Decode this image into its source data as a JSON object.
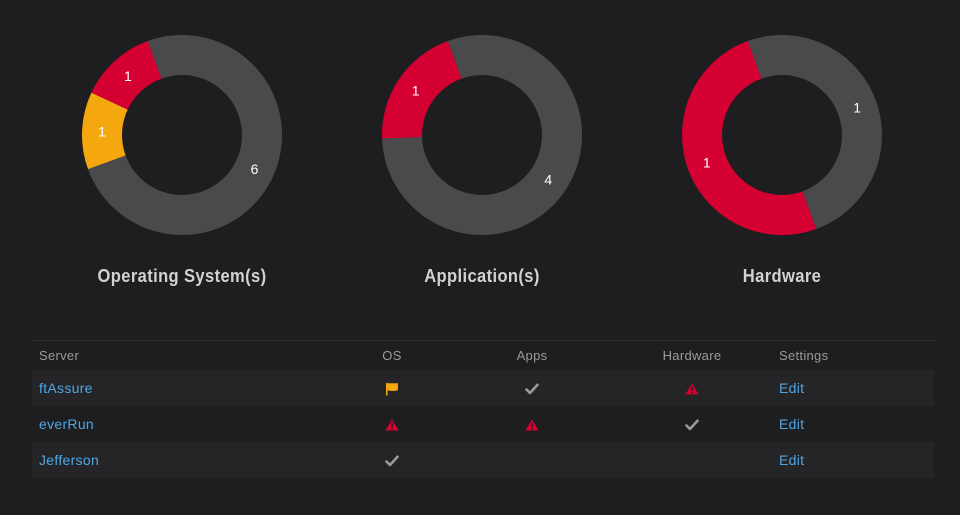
{
  "colors": {
    "background": "#1e1e20",
    "ok": "#4a4a4d",
    "critical": "#d50032",
    "warning": "#f5a70f",
    "link": "#4ea6e4",
    "check": "#9a9a9a"
  },
  "chart_data": [
    {
      "type": "pie",
      "title": "Operating System(s)",
      "slices": [
        {
          "status": "ok",
          "value": 6,
          "label": "6",
          "color": "#4a4a4d"
        },
        {
          "status": "warning",
          "value": 1,
          "label": "1",
          "color": "#f5a70f"
        },
        {
          "status": "critical",
          "value": 1,
          "label": "1",
          "color": "#d50032"
        }
      ]
    },
    {
      "type": "pie",
      "title": "Application(s)",
      "slices": [
        {
          "status": "ok",
          "value": 4,
          "label": "4",
          "color": "#4a4a4d"
        },
        {
          "status": "critical",
          "value": 1,
          "label": "1",
          "color": "#d50032"
        }
      ]
    },
    {
      "type": "pie",
      "title": "Hardware",
      "slices": [
        {
          "status": "ok",
          "value": 1,
          "label": "1",
          "color": "#4a4a4d"
        },
        {
          "status": "critical",
          "value": 1,
          "label": "1",
          "color": "#d50032"
        }
      ]
    }
  ],
  "table": {
    "headers": {
      "server": "Server",
      "os": "OS",
      "apps": "Apps",
      "hardware": "Hardware",
      "settings": "Settings"
    },
    "rows": [
      {
        "server": "ftAssure",
        "os": "flag-icon",
        "apps": "check-icon",
        "hardware": "alert-triangle-icon",
        "settings": "Edit"
      },
      {
        "server": "everRun",
        "os": "alert-triangle-icon",
        "apps": "alert-triangle-icon",
        "hardware": "check-icon",
        "settings": "Edit"
      },
      {
        "server": "Jefferson",
        "os": "check-icon",
        "apps": "",
        "hardware": "",
        "settings": "Edit"
      }
    ]
  }
}
